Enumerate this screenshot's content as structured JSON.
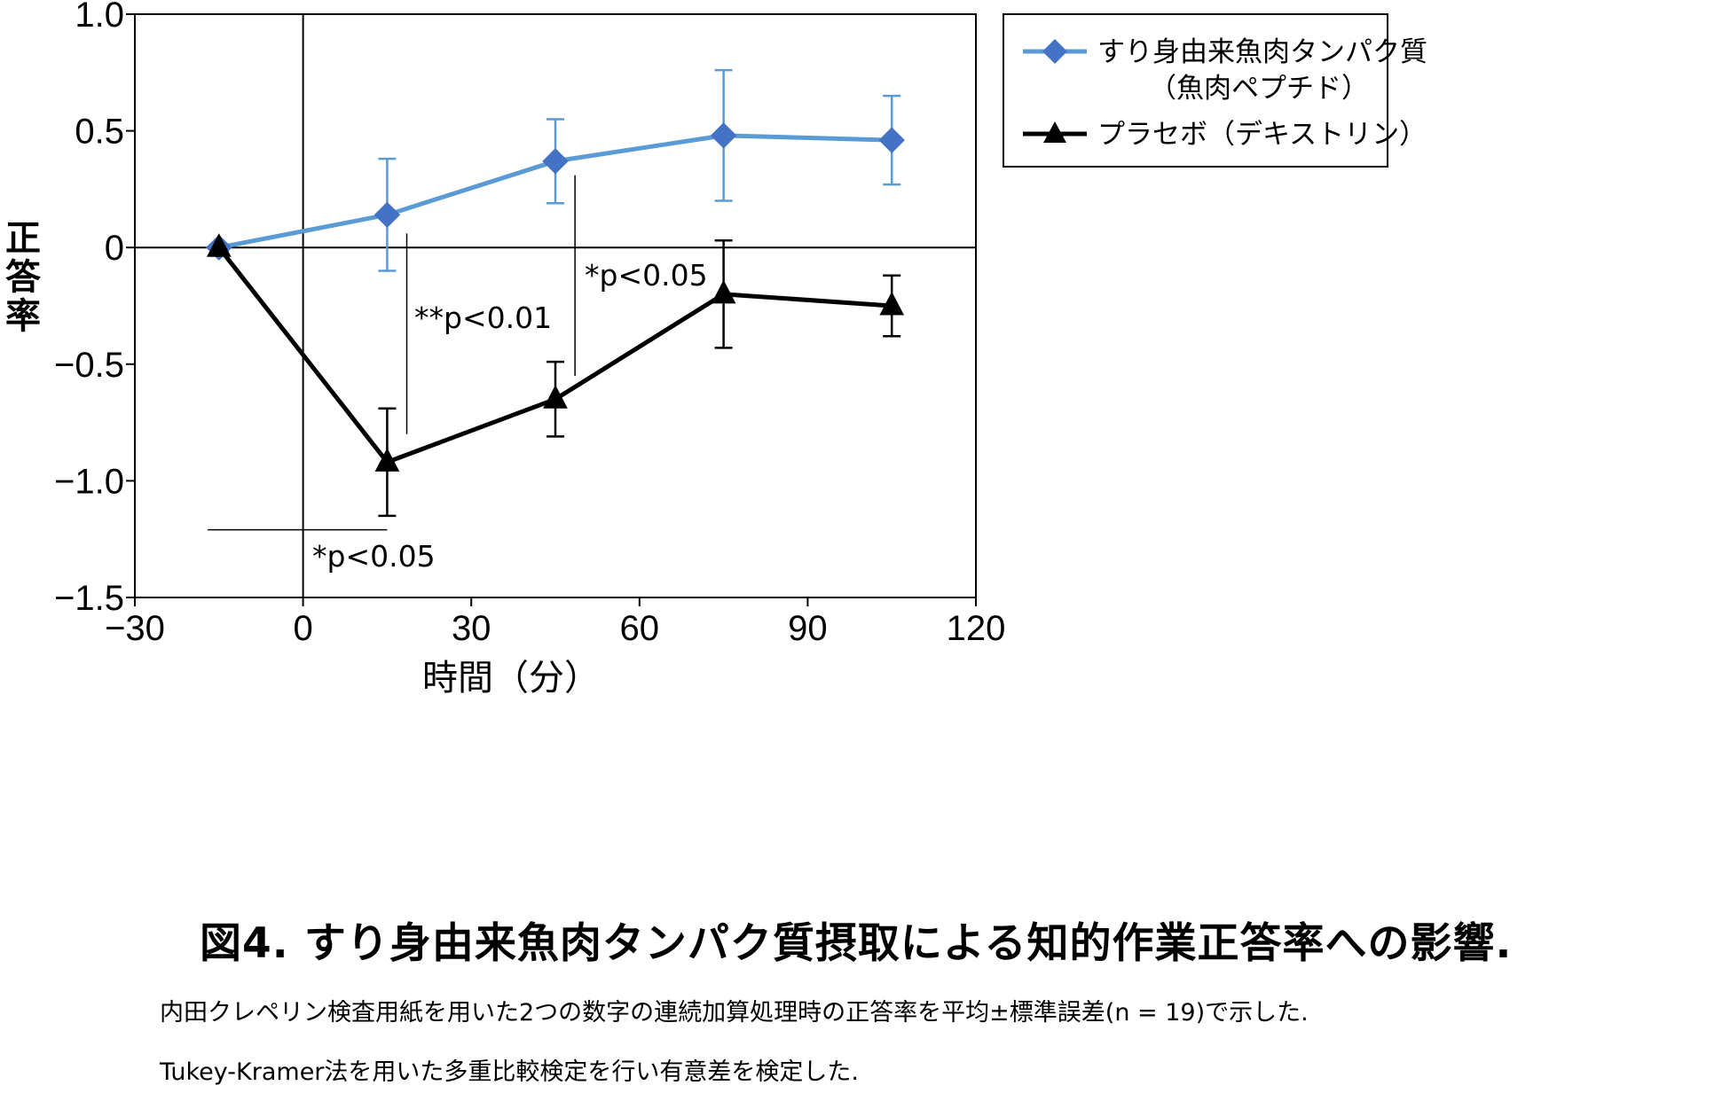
{
  "chart_data": {
    "type": "line",
    "xlabel": "時間（分）",
    "ylabel": "正答率",
    "xlim": [
      -30,
      120
    ],
    "ylim": [
      -1.5,
      1.0
    ],
    "xticks": [
      -30,
      0,
      30,
      60,
      90,
      120
    ],
    "xtick_labels": [
      "−30",
      "0",
      "30",
      "60",
      "90",
      "120"
    ],
    "yticks": [
      1.0,
      0.5,
      0,
      -0.5,
      -1.0,
      -1.5
    ],
    "ytick_labels": [
      "1.0",
      "0.5",
      "0",
      "−0.5",
      "−1.0",
      "−1.5"
    ],
    "grid": false,
    "reference_lines": {
      "x": 0,
      "y": 0
    },
    "legend_position": "top-right, outside plot",
    "series": [
      {
        "name": "すり身由来魚肉タンパク質",
        "name_line2": "（魚肉ペプチド）",
        "color": "#5b9bd5",
        "marker": "diamond",
        "x": [
          -15,
          15,
          45,
          75,
          105
        ],
        "y": [
          0.0,
          0.14,
          0.37,
          0.48,
          0.46
        ],
        "error": [
          0.0,
          0.24,
          0.18,
          0.28,
          0.19
        ]
      },
      {
        "name": "プラセボ（デキストリン）",
        "color": "#000000",
        "marker": "triangle",
        "x": [
          -15,
          15,
          45,
          75,
          105
        ],
        "y": [
          0.0,
          -0.92,
          -0.65,
          -0.2,
          -0.25
        ],
        "error": [
          0.0,
          0.23,
          0.16,
          0.23,
          0.13
        ]
      }
    ],
    "annotations": [
      {
        "text": "**p<0.01",
        "line": {
          "orientation": "vertical",
          "x": 18.5,
          "y1": 0.06,
          "y2": -0.8
        }
      },
      {
        "text": "*p<0.05",
        "line": {
          "orientation": "vertical",
          "x": 48.5,
          "y1": 0.31,
          "y2": -0.55
        }
      },
      {
        "text": "*p<0.05",
        "line": {
          "orientation": "horizontal",
          "y": -1.21,
          "x1": -17,
          "x2": 15
        }
      }
    ]
  },
  "figure": {
    "title": "図4. すり身由来魚肉タンパク質摂取による知的作業正答率への影響.",
    "caption_line1": "内田クレペリン検査用紙を用いた2つの数字の連続加算処理時の正答率を平均±標準誤差(n = 19)で示した.",
    "caption_line2": "Tukey-Kramer法を用いた多重比較検定を行い有意差を検定した."
  }
}
